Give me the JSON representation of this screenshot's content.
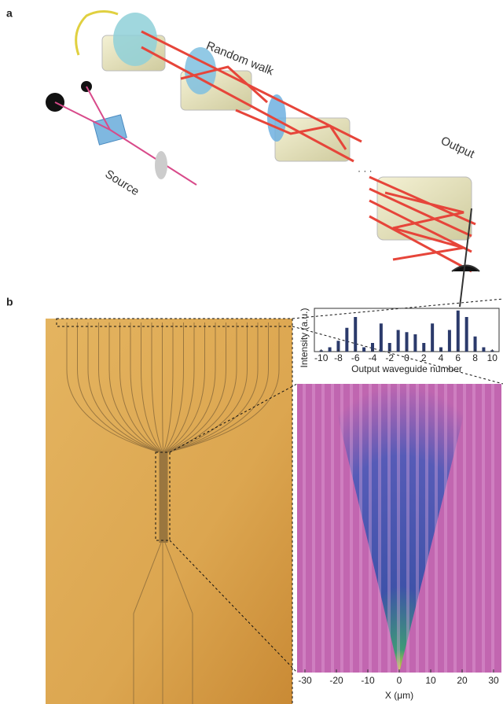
{
  "panels": {
    "a": {
      "label": "a",
      "random_walk": "Random walk",
      "output": "Output",
      "source": "Source"
    },
    "b": {
      "label": "b"
    }
  },
  "chart_data": [
    {
      "type": "bar",
      "ylabel": "Intensity (a.u.)",
      "xlabel": "Output waveguide number",
      "x": [
        -10,
        -9,
        -8,
        -7,
        -6,
        -5,
        -4,
        -3,
        -2,
        -1,
        0,
        1,
        2,
        3,
        4,
        5,
        6,
        7,
        8,
        9,
        10
      ],
      "values": [
        0.03,
        0.1,
        0.25,
        0.55,
        0.8,
        0.1,
        0.2,
        0.65,
        0.2,
        0.5,
        0.45,
        0.4,
        0.2,
        0.65,
        0.1,
        0.5,
        0.95,
        0.8,
        0.35,
        0.1,
        0.03
      ],
      "color": "#2b3a6b",
      "xlim": [
        -10.8,
        10.8
      ],
      "ylim": [
        0,
        1
      ],
      "xticks": [
        -10,
        -8,
        -6,
        -4,
        -2,
        0,
        2,
        4,
        6,
        8,
        10
      ]
    },
    {
      "type": "heatmap",
      "xlabel": "X (μm)",
      "xlim": [
        -32.5,
        32.5
      ],
      "xticks": [
        -30,
        -20,
        -10,
        0,
        10,
        20,
        30
      ]
    }
  ]
}
